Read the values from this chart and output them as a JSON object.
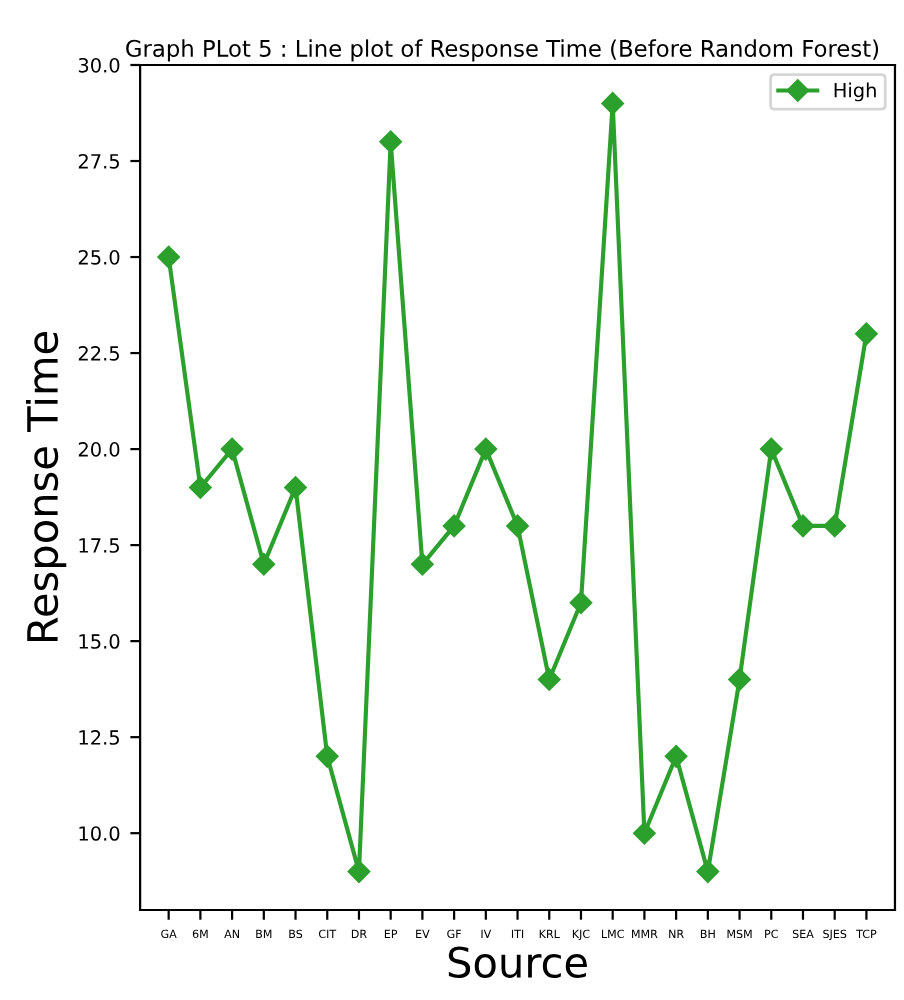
{
  "chart_data": {
    "type": "line",
    "title": "Graph PLot 5 : Line plot of Response Time (Before Random Forest)",
    "xlabel": "Source",
    "ylabel": "Response Time",
    "categories": [
      "GA",
      "6M",
      "AN",
      "BM",
      "BS",
      "CIT",
      "DR",
      "EP",
      "EV",
      "GF",
      "IV",
      "ITI",
      "KRL",
      "KJC",
      "LMC",
      "MMR",
      "NR",
      "BH",
      "MSM",
      "PC",
      "SEA",
      "SJES",
      "TCP"
    ],
    "series": [
      {
        "name": "High",
        "color": "#2ca02c",
        "values": [
          25,
          19,
          20,
          17,
          19,
          12,
          9,
          28,
          17,
          18,
          20,
          18,
          14,
          16,
          29,
          10,
          12,
          9,
          14,
          20,
          18,
          18,
          23
        ]
      }
    ],
    "ylim": [
      8,
      30
    ],
    "yticks": [
      {
        "value": 10,
        "label": "10.0"
      },
      {
        "value": 12.5,
        "label": "12.5"
      },
      {
        "value": 15,
        "label": "15.0"
      },
      {
        "value": 17.5,
        "label": "17.5"
      },
      {
        "value": 20,
        "label": "20.0"
      },
      {
        "value": 22.5,
        "label": "22.5"
      },
      {
        "value": 25,
        "label": "25.0"
      },
      {
        "value": 27.5,
        "label": "27.5"
      },
      {
        "value": 30,
        "label": "30.0"
      }
    ],
    "marker": "diamond",
    "legend": "top right",
    "grid": false
  }
}
